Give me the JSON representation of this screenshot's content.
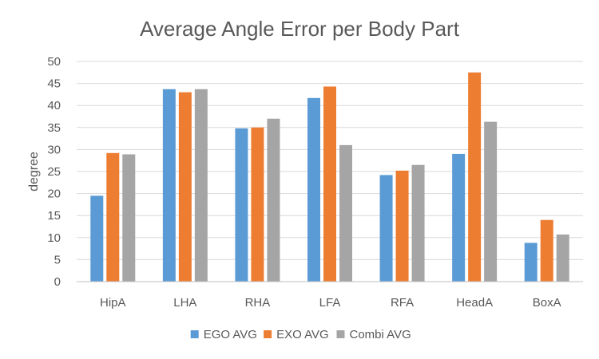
{
  "chart_data": {
    "type": "bar",
    "title": "Average Angle Error per Body Part",
    "xlabel": "",
    "ylabel": "degree",
    "categories": [
      "HipA",
      "LHA",
      "RHA",
      "LFA",
      "RFA",
      "HeadA",
      "BoxA"
    ],
    "series": [
      {
        "name": "EGO AVG",
        "color": "#5b9bd5",
        "values": [
          19.5,
          43.7,
          34.8,
          41.7,
          24.2,
          29.0,
          8.8
        ]
      },
      {
        "name": "EXO AVG",
        "color": "#ed7d31",
        "values": [
          29.2,
          43.0,
          35.0,
          44.3,
          25.2,
          47.5,
          14.0
        ]
      },
      {
        "name": "Combi AVG",
        "color": "#a5a5a5",
        "values": [
          28.9,
          43.7,
          37.0,
          31.0,
          26.5,
          36.3,
          10.7
        ]
      }
    ],
    "ylim": [
      0,
      50
    ],
    "yticks": [
      0,
      5,
      10,
      15,
      20,
      25,
      30,
      35,
      40,
      45,
      50
    ],
    "grid": true,
    "legend_position": "bottom"
  }
}
